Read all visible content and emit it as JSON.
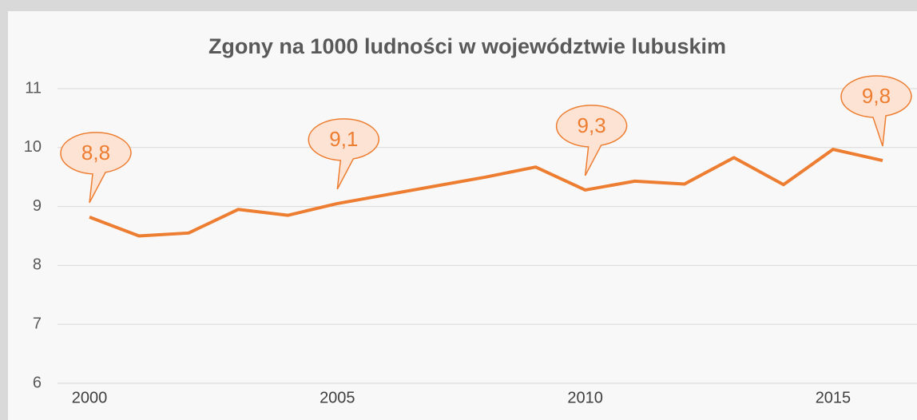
{
  "chart_data": {
    "type": "line",
    "title": "Zgony na 1000 ludności w województwie lubuskim",
    "x": [
      2000,
      2001,
      2002,
      2003,
      2004,
      2005,
      2006,
      2007,
      2008,
      2009,
      2010,
      2011,
      2012,
      2013,
      2014,
      2015,
      2016
    ],
    "series": [
      {
        "name": "Zgony na 1000 ludności",
        "color": "#ed7d31",
        "values": [
          8.82,
          8.5,
          8.55,
          8.95,
          8.85,
          9.05,
          9.2,
          9.35,
          9.5,
          9.67,
          9.28,
          9.43,
          9.38,
          9.83,
          9.37,
          9.97,
          9.78
        ],
        "value_labels": [
          "8,8",
          null,
          null,
          null,
          null,
          "9,1",
          null,
          null,
          null,
          null,
          "9,3",
          null,
          null,
          null,
          null,
          null,
          "9,8"
        ]
      }
    ],
    "xlim": [
      2000,
      2016
    ],
    "xticks": [
      2000,
      2005,
      2010,
      2015
    ],
    "ylim": [
      6,
      11
    ],
    "yticks": [
      6,
      7,
      8,
      9,
      10,
      11
    ],
    "grid": true
  }
}
